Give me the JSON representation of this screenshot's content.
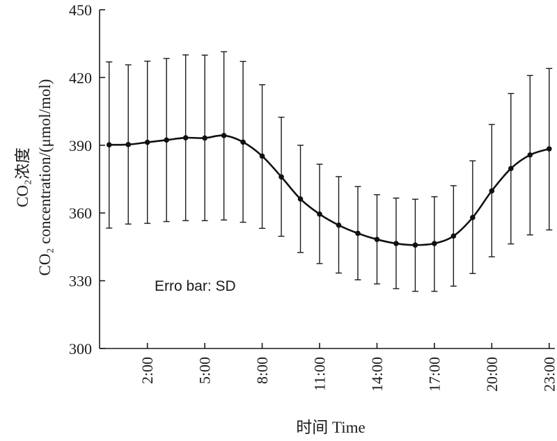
{
  "chart_data": {
    "type": "line",
    "xlabel": "时间 Time",
    "ylabel_line1": "CO₂浓度",
    "ylabel_line2": "CO₂ concentration/(μmol/mol)",
    "annotation": "Erro bar: SD",
    "ylim": [
      300,
      450
    ],
    "yticks": [
      300,
      330,
      360,
      390,
      420,
      450
    ],
    "xlim": [
      -0.5,
      23.3
    ],
    "xticks": [
      {
        "x": 2,
        "label": "2:00"
      },
      {
        "x": 5,
        "label": "5:00"
      },
      {
        "x": 8,
        "label": "8:00"
      },
      {
        "x": 11,
        "label": "11:00"
      },
      {
        "x": 14,
        "label": "14:00"
      },
      {
        "x": 17,
        "label": "17:00"
      },
      {
        "x": 20,
        "label": "20:00"
      },
      {
        "x": 23,
        "label": "23:00"
      }
    ],
    "series": [
      {
        "x": [
          0,
          1,
          2,
          3,
          4,
          5,
          6,
          7,
          8,
          9,
          10,
          11,
          12,
          13,
          14,
          15,
          16,
          17,
          18,
          19,
          20,
          21,
          22,
          23
        ],
        "values": [
          390.2,
          390.3,
          391.3,
          392.3,
          393.3,
          393.2,
          394.3,
          391.4,
          385.2,
          376.0,
          366.2,
          359.5,
          354.6,
          351.0,
          348.3,
          346.5,
          345.8,
          346.5,
          349.8,
          358.0,
          369.8,
          379.7,
          385.7,
          388.4
        ],
        "err_low": [
          353.3,
          355.1,
          355.4,
          356.2,
          356.6,
          356.6,
          356.9,
          355.9,
          353.2,
          349.7,
          342.5,
          337.6,
          333.4,
          330.4,
          328.6,
          326.5,
          325.3,
          325.3,
          327.6,
          333.2,
          340.6,
          346.3,
          350.3,
          352.5
        ],
        "err_high": [
          426.9,
          425.6,
          427.2,
          428.4,
          430.0,
          429.9,
          431.4,
          427.1,
          416.8,
          402.4,
          390.0,
          381.6,
          376.1,
          371.7,
          368.1,
          366.6,
          366.1,
          367.2,
          372.1,
          383.1,
          399.2,
          412.9,
          420.9,
          424.0
        ]
      }
    ],
    "grid": false,
    "legend": "none",
    "colors": {
      "line": "#111111",
      "axis": "#1a1a1a"
    }
  }
}
